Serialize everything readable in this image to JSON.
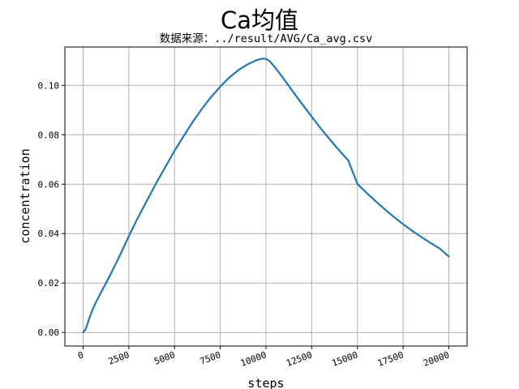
{
  "figure": {
    "suptitle": "Ca均值",
    "subtitle": "数据来源：../result/AVG/Ca_avg.csv"
  },
  "chart_data": {
    "type": "line",
    "title": "数据来源：../result/AVG/Ca_avg.csv",
    "xlabel": "steps",
    "ylabel": "concentration",
    "xlim": [
      -1000,
      21000
    ],
    "ylim": [
      -0.0055,
      0.1155
    ],
    "xticks": [
      0,
      2500,
      5000,
      7500,
      10000,
      12500,
      15000,
      17500,
      20000
    ],
    "xtick_labels": [
      "0",
      "2500",
      "5000",
      "7500",
      "10000",
      "12500",
      "15000",
      "17500",
      "20000"
    ],
    "yticks": [
      0.0,
      0.02,
      0.04,
      0.06,
      0.08,
      0.1
    ],
    "ytick_labels": [
      "0.00",
      "0.02",
      "0.04",
      "0.06",
      "0.08",
      "0.10"
    ],
    "grid": true,
    "line_color": "#1f77b4",
    "series": [
      {
        "x": [
          0,
          150,
          300,
          500,
          750,
          1000,
          1500,
          2000,
          2500,
          3000,
          3500,
          4000,
          4500,
          5000,
          5500,
          6000,
          6500,
          7000,
          7500,
          8000,
          8500,
          9000,
          9500,
          9800,
          10000,
          10200,
          10500,
          11000,
          11500,
          12000,
          12500,
          13000,
          13500,
          14000,
          14500,
          15000,
          15500,
          16000,
          16500,
          17000,
          17500,
          18000,
          18500,
          19000,
          19500,
          20000
        ],
        "y": [
          0.0,
          0.0015,
          0.005,
          0.009,
          0.013,
          0.0165,
          0.0235,
          0.031,
          0.039,
          0.0465,
          0.0535,
          0.0605,
          0.067,
          0.0735,
          0.0795,
          0.0853,
          0.0905,
          0.0953,
          0.0995,
          0.1032,
          0.1062,
          0.1085,
          0.1102,
          0.1108,
          0.1107,
          0.1098,
          0.1072,
          0.1023,
          0.0972,
          0.0922,
          0.0873,
          0.0825,
          0.078,
          0.0737,
          0.0696,
          0.0601,
          0.0565,
          0.0531,
          0.0498,
          0.0467,
          0.0438,
          0.0411,
          0.0386,
          0.0362,
          0.034,
          0.0307
        ]
      }
    ]
  }
}
